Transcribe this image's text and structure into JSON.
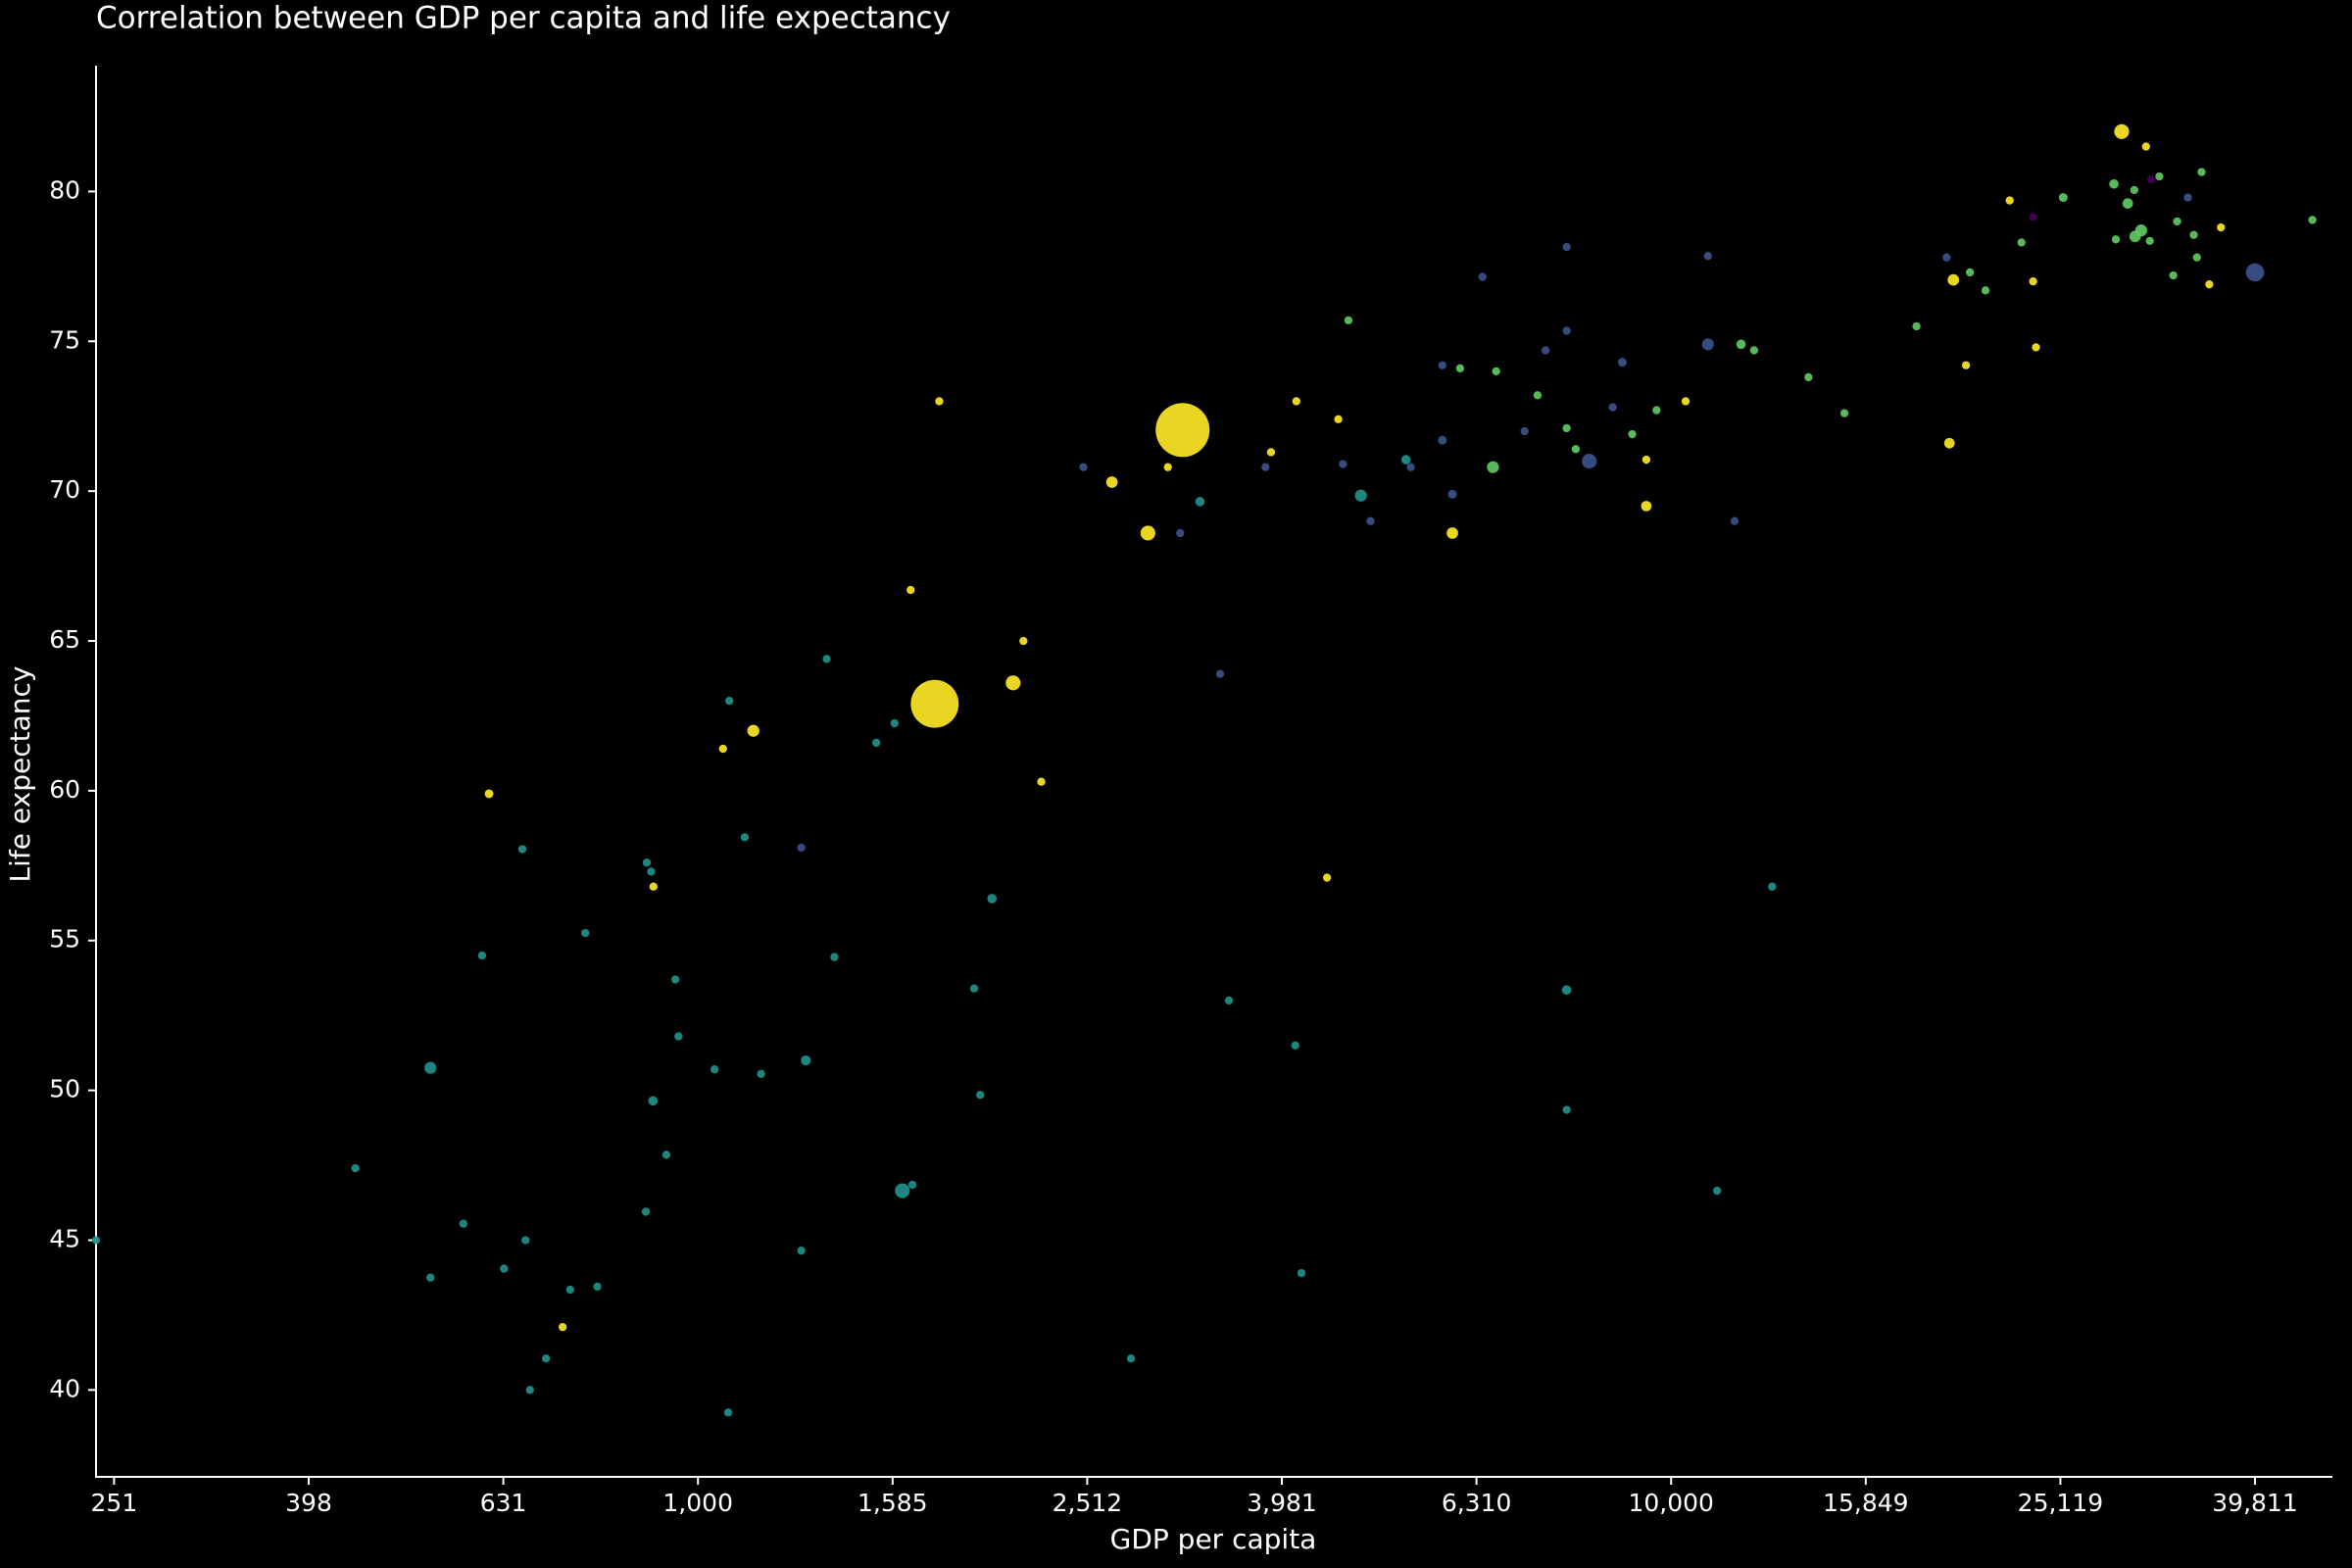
{
  "chart_data": {
    "type": "scatter",
    "title": "Correlation between GDP per capita and life expectancy",
    "x_label": "GDP per capita",
    "y_label": "Life expectancy",
    "x_scale": "log",
    "grid": false,
    "xlim": [
      240.7,
      47700
    ],
    "ylim": [
      37.1,
      84.2
    ],
    "xticks": [
      {
        "value": 251.19,
        "label": "251"
      },
      {
        "value": 398.11,
        "label": "398"
      },
      {
        "value": 630.96,
        "label": "631"
      },
      {
        "value": 1000,
        "label": "1,000"
      },
      {
        "value": 1584.89,
        "label": "1,585"
      },
      {
        "value": 2511.89,
        "label": "2,512"
      },
      {
        "value": 3981.07,
        "label": "3,981"
      },
      {
        "value": 6309.57,
        "label": "6,310"
      },
      {
        "value": 10000,
        "label": "10,000"
      },
      {
        "value": 15848.93,
        "label": "15,849"
      },
      {
        "value": 25118.86,
        "label": "25,119"
      },
      {
        "value": 39810.72,
        "label": "39,811"
      }
    ],
    "yticks": [
      40,
      45,
      50,
      55,
      60,
      65,
      70,
      75,
      80
    ],
    "series": [
      {
        "color": "#21918c",
        "x": [
          240.7,
          444.6,
          531,
          531,
          574,
          600,
          632,
          660,
          665,
          672,
          698,
          739,
          766,
          788,
          884,
          886,
          895,
          899,
          928,
          948,
          955,
          1040,
          1077,
          1074,
          1117,
          1161,
          1277,
          1291,
          1356,
          1381,
          1525,
          1592,
          1622,
          1661,
          1922,
          1950,
          2005,
          2786,
          3280,
          3513,
          4110,
          4170,
          4800,
          5340,
          7810,
          7810,
          11150,
          12700
        ],
        "values": [
          45.0,
          47.4,
          50.75,
          43.75,
          45.55,
          54.5,
          44.05,
          58.05,
          45.0,
          40.0,
          41.05,
          43.35,
          55.25,
          43.45,
          45.95,
          57.6,
          57.3,
          49.65,
          47.85,
          53.7,
          51.8,
          50.7,
          63.0,
          39.25,
          58.45,
          50.55,
          44.65,
          51.0,
          64.4,
          54.45,
          61.6,
          62.25,
          46.65,
          46.85,
          53.4,
          49.85,
          56.4,
          41.05,
          69.65,
          53.0,
          51.5,
          43.9,
          69.85,
          71.05,
          53.35,
          49.35,
          46.65,
          56.8
        ],
        "sizes": [
          30,
          30,
          65,
          30,
          30,
          30,
          30,
          30,
          30,
          30,
          30,
          30,
          30,
          30,
          30,
          30,
          30,
          40,
          30,
          30,
          30,
          30,
          30,
          30,
          30,
          30,
          30,
          45,
          30,
          30,
          30,
          30,
          100,
          30,
          30,
          30,
          40,
          30,
          40,
          30,
          30,
          30,
          65,
          40,
          40,
          30,
          30,
          30
        ]
      },
      {
        "color": "#fde725",
        "x": [
          29040,
          30760,
          22280,
          36730,
          19500,
          23550,
          35730,
          20090,
          23710,
          19320,
          10350,
          9430,
          9430,
          5960,
          4550,
          4120,
          3880,
          3148,
          3040,
          2663,
          2900,
          1770,
          1751,
          1654,
          2108,
          2160,
          2253,
          1140,
          1061,
          610,
          900,
          726,
          4430
        ],
        "values": [
          82.0,
          81.5,
          79.7,
          78.8,
          77.05,
          77.0,
          76.9,
          74.2,
          74.8,
          71.6,
          73.0,
          69.5,
          71.05,
          68.6,
          72.4,
          73.0,
          71.3,
          72.04,
          70.8,
          70.3,
          68.6,
          73.0,
          62.9,
          66.7,
          63.6,
          65.0,
          60.3,
          62.0,
          61.4,
          59.9,
          56.8,
          42.1,
          57.1
        ],
        "sizes": [
          100,
          30,
          30,
          30,
          60,
          30,
          30,
          30,
          30,
          50,
          30,
          50,
          30,
          60,
          30,
          30,
          30,
          1318,
          30,
          60,
          100,
          30,
          1040,
          30,
          100,
          30,
          30,
          65,
          30,
          35,
          30,
          30,
          30
        ]
      },
      {
        "color": "#3b528b",
        "x": [
          39810,
          33960,
          19190,
          10910,
          10910,
          11620,
          8910,
          8240,
          8710,
          7810,
          7810,
          7430,
          7070,
          6400,
          5820,
          5820,
          5960,
          5400,
          4910,
          4600,
          3830,
          3440,
          3130,
          2489,
          1277
        ],
        "values": [
          77.3,
          79.8,
          77.8,
          74.9,
          77.85,
          69.0,
          74.3,
          71.0,
          72.8,
          78.15,
          75.35,
          74.7,
          72.0,
          77.15,
          74.2,
          71.7,
          69.9,
          70.8,
          69.0,
          70.9,
          70.8,
          63.9,
          68.6,
          70.8,
          58.1
        ],
        "sizes": [
          150,
          30,
          30,
          65,
          30,
          30,
          35,
          100,
          30,
          30,
          30,
          30,
          30,
          30,
          30,
          35,
          35,
          30,
          30,
          30,
          30,
          30,
          30,
          30,
          30
        ]
      },
      {
        "color": "#5ec962",
        "x": [
          45600,
          35080,
          31750,
          28510,
          29920,
          29460,
          25290,
          30410,
          29980,
          28640,
          31040,
          33110,
          34440,
          34700,
          32810,
          22910,
          20280,
          21040,
          17870,
          15070,
          13840,
          12170,
          11800,
          9660,
          9120,
          7980,
          7810,
          7290,
          6610,
          6070,
          6560,
          4660
        ],
        "values": [
          79.05,
          80.65,
          80.5,
          80.25,
          80.05,
          79.6,
          79.8,
          78.7,
          78.5,
          78.4,
          78.35,
          79.0,
          78.55,
          77.8,
          77.2,
          78.3,
          77.3,
          76.7,
          75.5,
          72.6,
          73.8,
          74.7,
          74.9,
          72.7,
          71.9,
          71.4,
          72.1,
          73.2,
          74.0,
          74.1,
          70.8,
          75.7
        ],
        "sizes": [
          30,
          30,
          30,
          40,
          30,
          50,
          35,
          65,
          60,
          30,
          30,
          30,
          30,
          30,
          30,
          30,
          30,
          30,
          30,
          30,
          30,
          30,
          40,
          30,
          30,
          30,
          30,
          30,
          30,
          30,
          65,
          30
        ]
      },
      {
        "color": "#440154",
        "x": [
          23550,
          31130
        ],
        "values": [
          79.15,
          80.4
        ],
        "sizes": [
          30,
          30
        ]
      }
    ]
  }
}
